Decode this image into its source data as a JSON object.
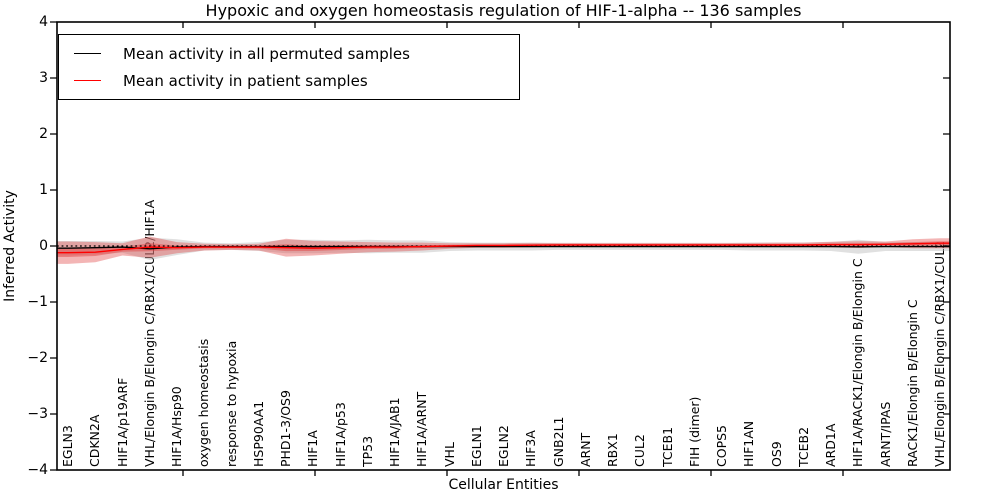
{
  "chart": {
    "title": "Hypoxic and oxygen homeostasis regulation of HIF-1-alpha -- 136 samples",
    "xlabel": "Cellular Entities",
    "ylabel": "Inferred Activity"
  },
  "chart_data": {
    "type": "line",
    "title": "Hypoxic and oxygen homeostasis regulation of HIF-1-alpha -- 136 samples",
    "xlabel": "Cellular Entities",
    "ylabel": "Inferred Activity",
    "ylim": [
      -4,
      4
    ],
    "ytick_labels": [
      "4",
      "3",
      "2",
      "1",
      "0",
      "−1",
      "−2",
      "−3",
      "−4"
    ],
    "ytick_values": [
      4,
      3,
      2,
      1,
      0,
      -1,
      -2,
      -3,
      -4
    ],
    "grid": false,
    "legend_position": "upper left",
    "zero_line": 0,
    "sample_count": 136,
    "categories": [
      "EGLN3",
      "CDKN2A",
      "HIF1A/p19ARF",
      "VHL/Elongin B/Elongin C/RBX1/CUL2/HIF1A",
      "HIF1A/Hsp90",
      "oxygen homeostasis",
      "response to hypoxia",
      "HSP90AA1",
      "PHD1-3/OS9",
      "HIF1A",
      "HIF1A/p53",
      "TP53",
      "HIF1A/JAB1",
      "HIF1A/ARNT",
      "VHL",
      "EGLN1",
      "EGLN2",
      "HIF3A",
      "GNB2L1",
      "ARNT",
      "RBX1",
      "CUL2",
      "TCEB1",
      "FIH (dimer)",
      "COPS5",
      "HIF1AN",
      "OS9",
      "TCEB2",
      "ARD1A",
      "HIF1A/RACK1/Elongin B/Elongin C",
      "ARNT/IPAS",
      "RACK1/Elongin B/Elongin C",
      "VHL/Elongin B/Elongin C/RBX1/CUL2"
    ],
    "series": [
      {
        "name": "Mean activity in all permuted samples",
        "color": "#000000",
        "band_color": "#bbbbbb",
        "band_opacity": 0.45,
        "mean": [
          -0.04,
          -0.03,
          -0.02,
          -0.05,
          -0.02,
          -0.01,
          -0.01,
          -0.01,
          -0.01,
          -0.01,
          -0.01,
          -0.01,
          -0.01,
          -0.01,
          -0.01,
          -0.01,
          -0.01,
          -0.01,
          -0.01,
          -0.01,
          -0.01,
          -0.01,
          -0.01,
          -0.01,
          -0.01,
          -0.01,
          -0.01,
          -0.01,
          -0.01,
          -0.015,
          -0.01,
          -0.01,
          -0.01
        ],
        "std": [
          0.13,
          0.12,
          0.1,
          0.2,
          0.14,
          0.07,
          0.06,
          0.08,
          0.12,
          0.12,
          0.11,
          0.12,
          0.11,
          0.11,
          0.08,
          0.07,
          0.07,
          0.07,
          0.06,
          0.06,
          0.06,
          0.06,
          0.06,
          0.06,
          0.06,
          0.07,
          0.07,
          0.07,
          0.08,
          0.125,
          0.08,
          0.08,
          0.08
        ]
      },
      {
        "name": "Mean activity in patient samples",
        "color": "#ff0000",
        "band_color": "#e03c3c",
        "band_opacity": 0.38,
        "mean": [
          -0.12,
          -0.11,
          -0.06,
          -0.02,
          -0.03,
          -0.02,
          -0.02,
          -0.02,
          -0.03,
          -0.04,
          -0.03,
          -0.02,
          -0.02,
          -0.01,
          0.0,
          0.01,
          0.01,
          0.015,
          0.02,
          0.02,
          0.02,
          0.02,
          0.02,
          0.02,
          0.02,
          0.02,
          0.02,
          0.02,
          0.025,
          0.025,
          0.03,
          0.04,
          0.05
        ],
        "std": [
          0.2,
          0.18,
          0.11,
          0.19,
          0.1,
          0.06,
          0.05,
          0.06,
          0.16,
          0.13,
          0.11,
          0.09,
          0.08,
          0.07,
          0.05,
          0.04,
          0.04,
          0.04,
          0.035,
          0.035,
          0.035,
          0.035,
          0.035,
          0.035,
          0.035,
          0.035,
          0.04,
          0.04,
          0.05,
          0.06,
          0.05,
          0.08,
          0.09
        ]
      }
    ]
  },
  "legend": {
    "items": [
      {
        "label": "Mean activity in all permuted samples",
        "color": "#000000"
      },
      {
        "label": "Mean activity in patient samples",
        "color": "#ff0000"
      }
    ]
  },
  "colors": {
    "frame": "#000000",
    "zero_line": "#000000",
    "background": "#ffffff"
  }
}
